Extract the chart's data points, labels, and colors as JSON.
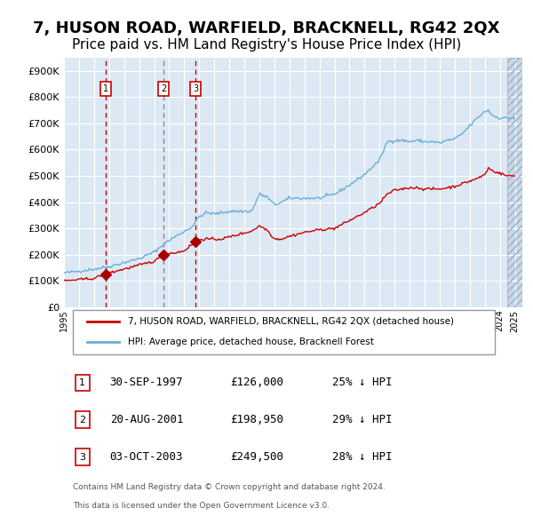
{
  "title": "7, HUSON ROAD, WARFIELD, BRACKNELL, RG42 2QX",
  "subtitle": "Price paid vs. HM Land Registry's House Price Index (HPI)",
  "title_fontsize": 13,
  "subtitle_fontsize": 11,
  "bg_color": "#dce9f5",
  "plot_bg_color": "#dce9f5",
  "grid_color": "#ffffff",
  "hpi_color": "#6baed6",
  "price_color": "#cc0000",
  "marker_color": "#aa0000",
  "vline_color_red": "#cc0000",
  "vline_color_gray": "#888888",
  "ylim": [
    0,
    950000
  ],
  "xlim_start": 1995.0,
  "xlim_end": 2025.5,
  "yticks": [
    0,
    100000,
    200000,
    300000,
    400000,
    500000,
    600000,
    700000,
    800000,
    900000
  ],
  "ytick_labels": [
    "£0",
    "£100K",
    "£200K",
    "£300K",
    "£400K",
    "£500K",
    "£600K",
    "£700K",
    "£800K",
    "£900K"
  ],
  "xticks": [
    1995,
    1996,
    1997,
    1998,
    1999,
    2000,
    2001,
    2002,
    2003,
    2004,
    2005,
    2006,
    2007,
    2008,
    2009,
    2010,
    2011,
    2012,
    2013,
    2014,
    2015,
    2016,
    2017,
    2018,
    2019,
    2020,
    2021,
    2022,
    2023,
    2024,
    2025
  ],
  "sales": [
    {
      "label": "1",
      "date": "30-SEP-1997",
      "year": 1997.75,
      "price": 126000,
      "pct": "25%",
      "vline_style": "red"
    },
    {
      "label": "2",
      "date": "20-AUG-2001",
      "year": 2001.63,
      "price": 198950,
      "pct": "29%",
      "vline_style": "gray"
    },
    {
      "label": "3",
      "date": "03-OCT-2003",
      "year": 2003.75,
      "price": 249500,
      "pct": "28%",
      "vline_style": "red"
    }
  ],
  "legend_line1": "7, HUSON ROAD, WARFIELD, BRACKNELL, RG42 2QX (detached house)",
  "legend_line2": "HPI: Average price, detached house, Bracknell Forest",
  "footer1": "Contains HM Land Registry data © Crown copyright and database right 2024.",
  "footer2": "This data is licensed under the Open Government Licence v3.0.",
  "hatch_color": "#bbccdd"
}
